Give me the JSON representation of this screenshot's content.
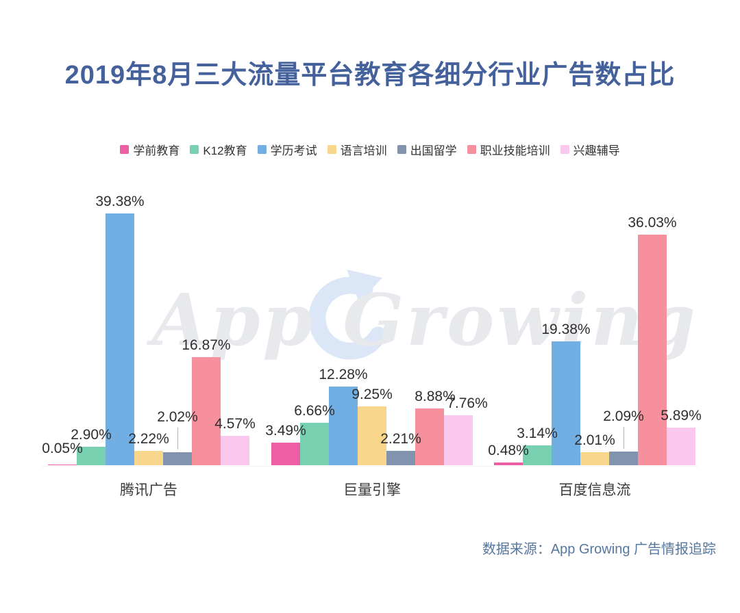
{
  "title": "2019年8月三大流量平台教育各细分行业广告数占比",
  "watermark_text": "App Growing",
  "source_note": "数据来源：App Growing 广告情报追踪",
  "chart_data": {
    "type": "bar",
    "title": "2019年8月三大流量平台教育各细分行业广告数占比",
    "categories": [
      "腾讯广告",
      "巨量引擎",
      "百度信息流"
    ],
    "series": [
      {
        "name": "学前教育",
        "color": "#ed5fa4",
        "values": [
          0.05,
          3.49,
          0.48
        ]
      },
      {
        "name": "K12教育",
        "color": "#77d1b1",
        "values": [
          2.9,
          6.66,
          3.14
        ]
      },
      {
        "name": "学历考试",
        "color": "#70aee3",
        "values": [
          39.38,
          12.28,
          19.38
        ]
      },
      {
        "name": "语言培训",
        "color": "#f8d78c",
        "values": [
          2.22,
          9.25,
          2.01
        ]
      },
      {
        "name": "出国留学",
        "color": "#8193ad",
        "values": [
          2.02,
          2.21,
          2.09
        ]
      },
      {
        "name": "职业技能培训",
        "color": "#f5909c",
        "values": [
          16.87,
          8.88,
          36.03
        ]
      },
      {
        "name": "兴趣辅导",
        "color": "#fac7ef",
        "values": [
          4.57,
          7.76,
          5.89
        ]
      }
    ],
    "value_suffix": "%",
    "value_decimals": 2,
    "ylim": [
      0,
      42
    ],
    "grid": false,
    "legend_position": "top",
    "axis_labels_visible": false
  }
}
